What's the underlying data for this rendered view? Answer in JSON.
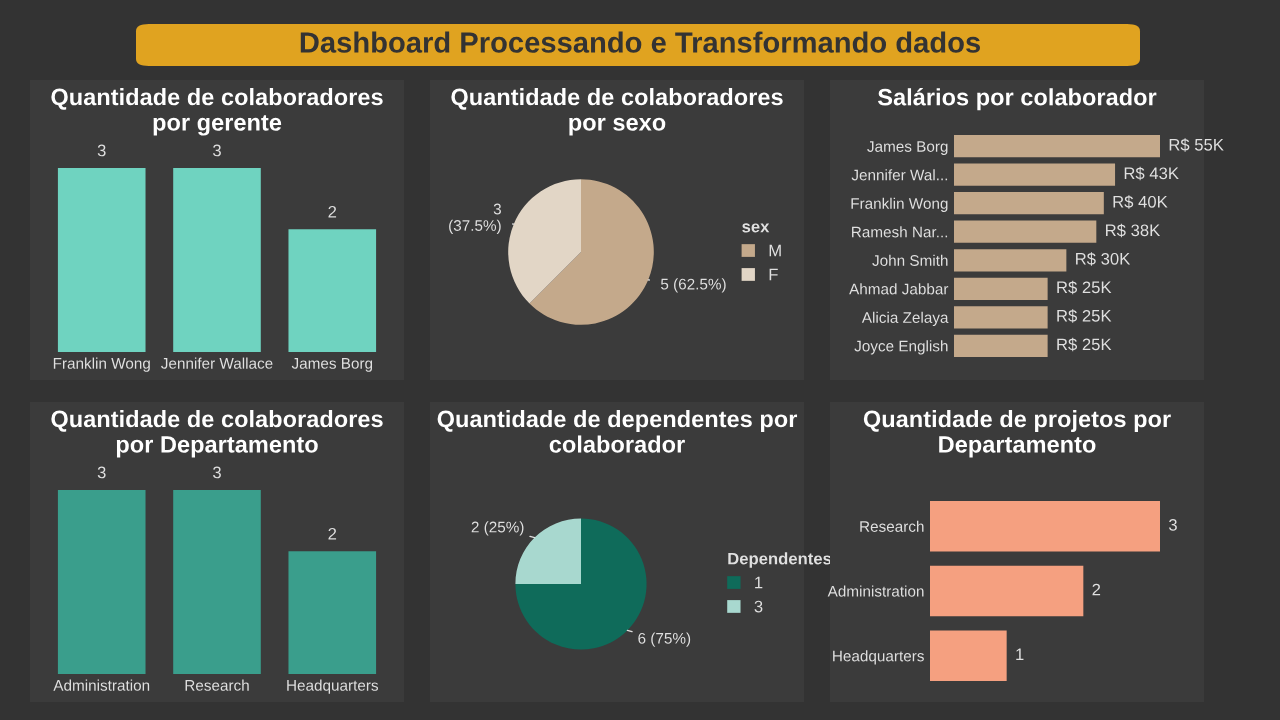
{
  "chart_data": [
    {
      "type": "other",
      "title": "Dashboard Processando e Transformando dados"
    },
    {
      "type": "bar",
      "title": "Quantidade de colaboradores por gerente",
      "categories": [
        "Franklin Wong",
        "Jennifer Wallace",
        "James Borg"
      ],
      "values": [
        3,
        3,
        2
      ],
      "color": "#6fd3c0",
      "data_labels": true
    },
    {
      "type": "pie",
      "title": "Quantidade de colaboradores por sexo",
      "categories": [
        "M",
        "F"
      ],
      "values": [
        5,
        3
      ],
      "colors": [
        "#c4a98b",
        "#e2d6c6"
      ],
      "value_labels": [
        "5 (62.5%)",
        "3\n(37.5%)"
      ],
      "legend_title": "sex",
      "legend": "right"
    },
    {
      "type": "bar",
      "orientation": "horizontal",
      "title": "Salários por colaborador",
      "categories": [
        "James Borg",
        "Jennifer Wal...",
        "Franklin Wong",
        "Ramesh Nar...",
        "John Smith",
        "Ahmad Jabbar",
        "Alicia Zelaya",
        "Joyce English"
      ],
      "values": [
        55000,
        43000,
        40000,
        38000,
        30000,
        25000,
        25000,
        25000
      ],
      "value_labels": [
        "R$ 55K",
        "R$ 43K",
        "R$ 40K",
        "R$ 38K",
        "R$ 30K",
        "R$ 25K",
        "R$ 25K",
        "R$ 25K"
      ],
      "color": "#c4a98b"
    },
    {
      "type": "bar",
      "title": "Quantidade de colaboradores por Departamento",
      "categories": [
        "Administration",
        "Research",
        "Headquarters"
      ],
      "values": [
        3,
        3,
        2
      ],
      "color": "#3a9e8c",
      "data_labels": true
    },
    {
      "type": "pie",
      "title": "Quantidade de dependentes por colaborador",
      "categories": [
        "1",
        "3"
      ],
      "values": [
        6,
        2
      ],
      "colors": [
        "#0f6b5a",
        "#a8d8cf"
      ],
      "value_labels": [
        "6 (75%)",
        "2 (25%)"
      ],
      "legend_title": "Dependentes",
      "legend": "right"
    },
    {
      "type": "bar",
      "orientation": "horizontal",
      "title": "Quantidade de projetos por Departamento",
      "categories": [
        "Research",
        "Administration",
        "Headquarters"
      ],
      "values": [
        3,
        2,
        1
      ],
      "color": "#f5a080",
      "data_labels": true
    }
  ]
}
